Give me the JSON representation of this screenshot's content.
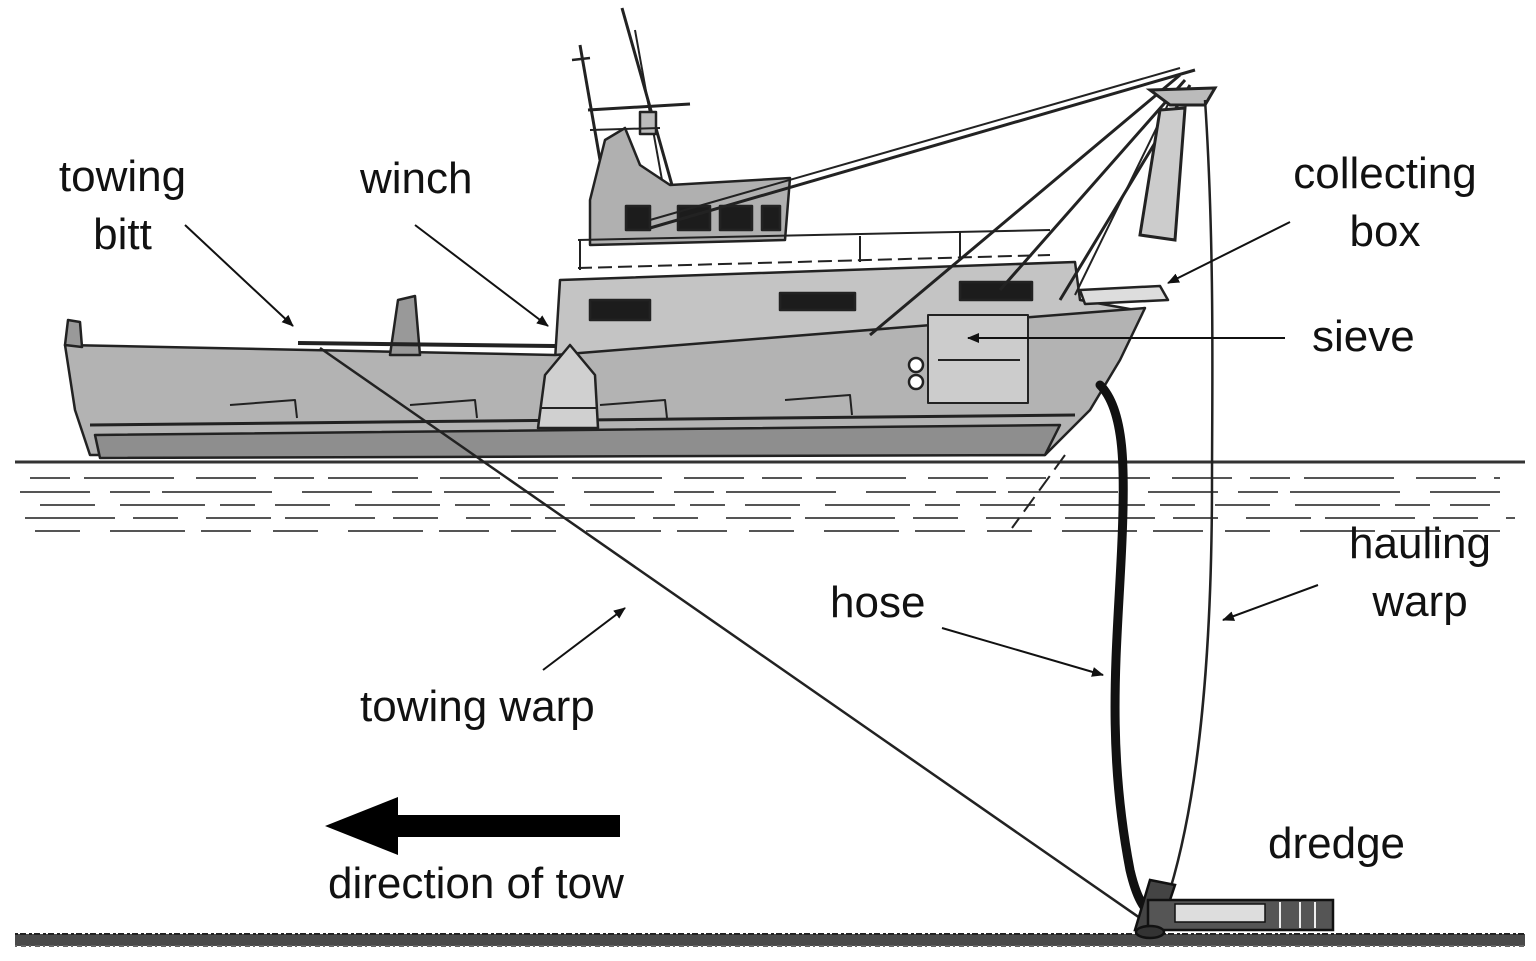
{
  "labels": {
    "towing_bitt": [
      "towing",
      "bitt"
    ],
    "winch": "winch",
    "collecting_box": [
      "collecting",
      "box"
    ],
    "sieve": "sieve",
    "hauling_warp": [
      "hauling",
      "warp"
    ],
    "hose": "hose",
    "towing_warp": "towing warp",
    "direction_of_tow": "direction of tow",
    "dredge": "dredge"
  },
  "colors": {
    "hull": "#b3b3b3",
    "hull_dark": "#8e8e8e",
    "cabin": "#c4c4c4",
    "window": "#1c1c1c",
    "line": "#222222",
    "water": "#555555",
    "seabed": "#3a3a3a"
  }
}
